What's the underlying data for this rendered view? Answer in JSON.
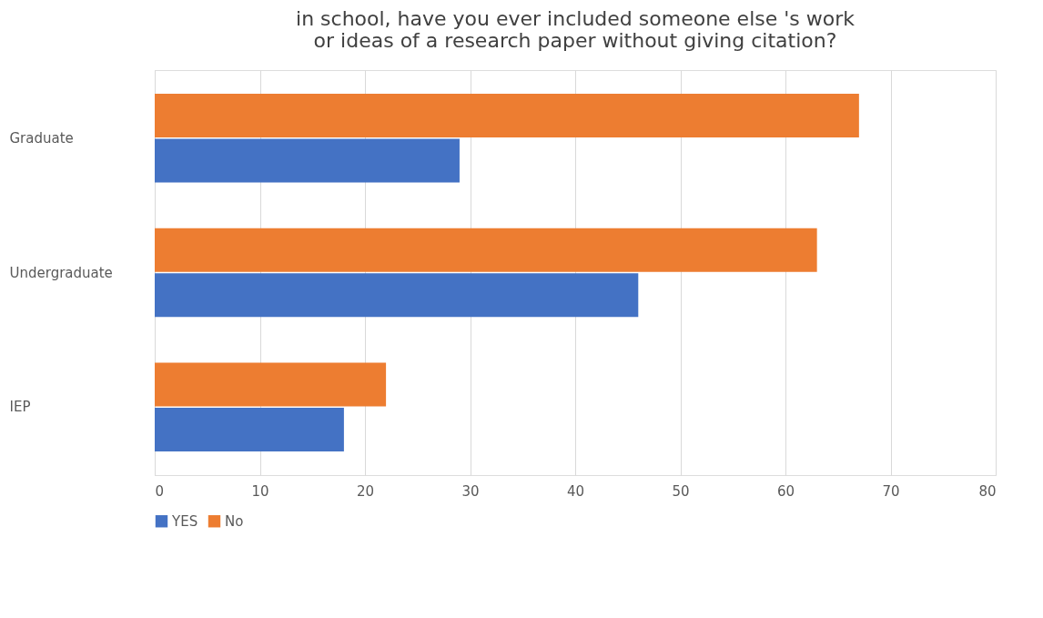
{
  "chart_data": {
    "type": "bar",
    "orientation": "horizontal",
    "title": "in school, have you ever included someone else 's work or ideas of a research paper without giving citation?",
    "categories": [
      "Graduate",
      "Undergraduate",
      "IEP"
    ],
    "series": [
      {
        "name": "YES",
        "color": "#4472c4",
        "values": [
          29,
          46,
          18
        ]
      },
      {
        "name": "No",
        "color": "#ed7d31",
        "values": [
          67,
          63,
          22
        ]
      }
    ],
    "xlim": [
      0,
      80
    ],
    "xticks": [
      0,
      10,
      20,
      30,
      40,
      50,
      60,
      70,
      80
    ],
    "grid": "x",
    "legend": "bottom"
  }
}
